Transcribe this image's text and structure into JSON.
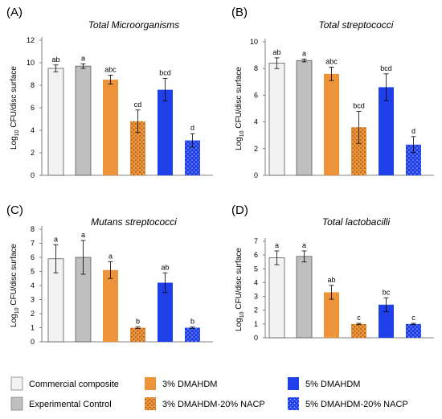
{
  "legend": [
    {
      "label": "Commercial composite",
      "color": "#f2f2f2",
      "pattern": "solid"
    },
    {
      "label": "Experimental Control",
      "color": "#bfbfbf",
      "pattern": "solid"
    },
    {
      "label": "3% DMAHDM",
      "color": "#ed943a",
      "pattern": "solid"
    },
    {
      "label": "3% DMAHDM-20% NACP",
      "color": "#ed943a",
      "pattern": "dots"
    },
    {
      "label": "5% DMAHDM",
      "color": "#1f3fe8",
      "pattern": "solid"
    },
    {
      "label": "5% DMAHDM-20% NACP",
      "color": "#1f3fe8",
      "pattern": "dots"
    }
  ],
  "chart_data": [
    {
      "type": "bar",
      "panel": "(A)",
      "title": "Total Microorganisms",
      "ylabel_prefix": "Log",
      "ylabel_sub": "10",
      "ylabel_suffix": " CFU/disc surface",
      "ylim": [
        0,
        12
      ],
      "yticks": [
        0,
        2,
        4,
        6,
        8,
        10,
        12
      ],
      "categories": [
        "Commercial composite",
        "Experimental Control",
        "3% DMAHDM",
        "3% DMAHDM-20% NACP",
        "5% DMAHDM",
        "5% DMAHDM-20% NACP"
      ],
      "values": [
        9.5,
        9.7,
        8.5,
        4.8,
        7.6,
        3.1
      ],
      "errors": [
        0.3,
        0.2,
        0.4,
        1.0,
        1.0,
        0.6
      ],
      "significance": [
        "ab",
        "a",
        "abc",
        "cd",
        "bcd",
        "d"
      ]
    },
    {
      "type": "bar",
      "panel": "(B)",
      "title": "Total streptococci",
      "ylabel_prefix": "Log",
      "ylabel_sub": "10",
      "ylabel_suffix": " CFU/disc surface",
      "ylim": [
        0,
        10
      ],
      "yticks": [
        0,
        2,
        4,
        6,
        8,
        10
      ],
      "categories": [
        "Commercial composite",
        "Experimental Control",
        "3% DMAHDM",
        "3% DMAHDM-20% NACP",
        "5% DMAHDM",
        "5% DMAHDM-20% NACP"
      ],
      "values": [
        8.4,
        8.6,
        7.6,
        3.6,
        6.6,
        2.3
      ],
      "errors": [
        0.4,
        0.1,
        0.5,
        1.2,
        1.0,
        0.6
      ],
      "significance": [
        "ab",
        "a",
        "abc",
        "bcd",
        "bcd",
        "d"
      ]
    },
    {
      "type": "bar",
      "panel": "(C)",
      "title": "Mutans streptococci",
      "ylabel_prefix": "Log",
      "ylabel_sub": "10",
      "ylabel_suffix": " CFU/disc  surface",
      "ylim": [
        0,
        8
      ],
      "yticks": [
        0,
        1,
        2,
        3,
        4,
        5,
        6,
        7,
        8
      ],
      "categories": [
        "Commercial composite",
        "Experimental Control",
        "3% DMAHDM",
        "3% DMAHDM-20% NACP",
        "5% DMAHDM",
        "5% DMAHDM-20% NACP"
      ],
      "values": [
        5.9,
        6.0,
        5.1,
        1.0,
        4.2,
        1.0
      ],
      "errors": [
        1.0,
        1.2,
        0.6,
        0.05,
        0.7,
        0.05
      ],
      "significance": [
        "a",
        "a",
        "a",
        "b",
        "ab",
        "b"
      ]
    },
    {
      "type": "bar",
      "panel": "(D)",
      "title": "Total lactobacilli",
      "ylabel_prefix": "Log",
      "ylabel_sub": "10",
      "ylabel_suffix": " CFU/disc surface",
      "ylim": [
        0,
        7
      ],
      "yticks": [
        0,
        1,
        2,
        3,
        4,
        5,
        6,
        7
      ],
      "categories": [
        "Commercial composite",
        "Experimental Control",
        "3% DMAHDM",
        "3% DMAHDM-20% NACP",
        "5% DMAHDM",
        "5% DMAHDM-20% NACP"
      ],
      "values": [
        5.8,
        5.9,
        3.3,
        1.0,
        2.4,
        1.0
      ],
      "errors": [
        0.5,
        0.4,
        0.5,
        0.05,
        0.5,
        0.05
      ],
      "significance": [
        "a",
        "a",
        "ab",
        "c",
        "bc",
        "c"
      ]
    }
  ]
}
